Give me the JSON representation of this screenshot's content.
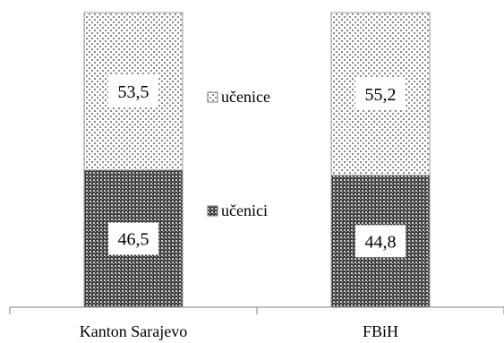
{
  "chart_data": {
    "type": "bar",
    "stacked": true,
    "normalized_percent": true,
    "categories": [
      "Kanton Sarajevo",
      "FBiH"
    ],
    "series": [
      {
        "name": "učenici",
        "values": [
          46.5,
          44.8
        ],
        "labels": [
          "46,5",
          "44,8"
        ],
        "pattern": "dark-checker"
      },
      {
        "name": "učenice",
        "values": [
          53.5,
          55.2
        ],
        "labels": [
          "53,5",
          "55,2"
        ],
        "pattern": "light-dots"
      }
    ],
    "ylim": [
      0,
      100
    ],
    "grid": false,
    "legend_position": "center",
    "title": "",
    "xlabel": "",
    "ylabel": ""
  }
}
